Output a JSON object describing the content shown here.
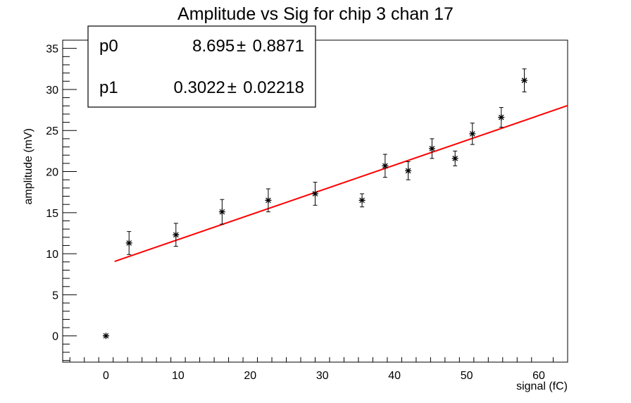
{
  "chart_data": {
    "type": "scatter",
    "title": "Amplitude vs Sig for chip 3 chan 17",
    "xlabel": "signal (fC)",
    "ylabel": "amplitude (mV)",
    "xlim": [
      -6,
      64
    ],
    "ylim": [
      -3.2,
      36
    ],
    "x_ticks": [
      "0",
      "10",
      "20",
      "30",
      "40",
      "50",
      "60"
    ],
    "y_ticks": [
      "0",
      "5",
      "10",
      "15",
      "20",
      "25",
      "30",
      "35"
    ],
    "grid": false,
    "points": [
      {
        "x": 0.0,
        "y": 0.0,
        "err": 0.0
      },
      {
        "x": 3.2,
        "y": 11.3,
        "err": 1.4
      },
      {
        "x": 9.7,
        "y": 12.3,
        "err": 1.4
      },
      {
        "x": 16.1,
        "y": 15.1,
        "err": 1.5
      },
      {
        "x": 22.5,
        "y": 16.5,
        "err": 1.4
      },
      {
        "x": 29.0,
        "y": 17.3,
        "err": 1.4
      },
      {
        "x": 35.5,
        "y": 16.5,
        "err": 0.8
      },
      {
        "x": 38.7,
        "y": 20.7,
        "err": 1.4
      },
      {
        "x": 41.9,
        "y": 20.1,
        "err": 1.1
      },
      {
        "x": 45.2,
        "y": 22.8,
        "err": 1.2
      },
      {
        "x": 48.4,
        "y": 21.6,
        "err": 0.9
      },
      {
        "x": 50.8,
        "y": 24.6,
        "err": 1.3
      },
      {
        "x": 54.8,
        "y": 26.6,
        "err": 1.2
      },
      {
        "x": 58.0,
        "y": 31.1,
        "err": 1.4
      }
    ],
    "fit": {
      "p0": 8.695,
      "p1": 0.3022,
      "x_range": [
        1.2,
        64
      ],
      "color": "#ff0000"
    },
    "stats_box": {
      "placement": "top-left",
      "rows": [
        {
          "name": "p0",
          "value": "8.695",
          "pm": "±",
          "error": "0.8871"
        },
        {
          "name": "p1",
          "value": "0.3022",
          "pm": "±",
          "error": "0.02218"
        }
      ]
    }
  }
}
